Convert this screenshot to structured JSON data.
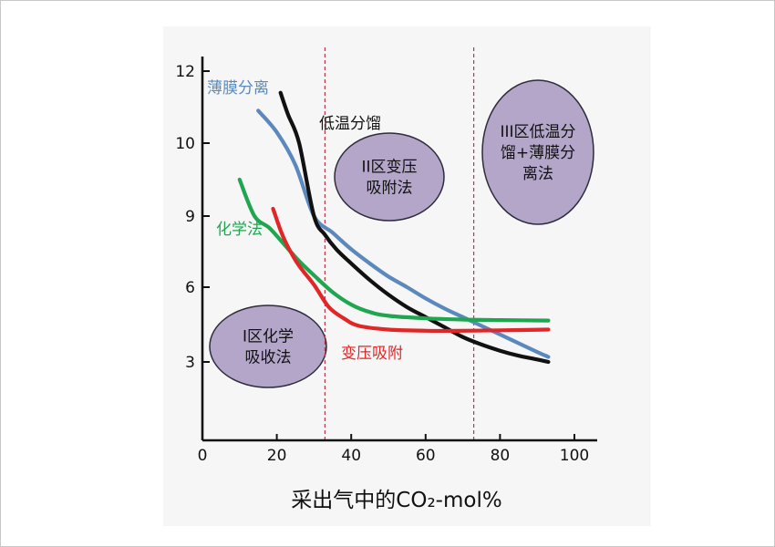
{
  "chart_data": {
    "type": "line",
    "xlabel": "采出气中的CO₂-mol%",
    "x_ticks": [
      "0",
      "20",
      "40",
      "60",
      "80",
      "100"
    ],
    "y_ticks": [
      "3",
      "6",
      "9",
      "10",
      "12"
    ],
    "xlim": [
      0,
      100
    ],
    "y_scale": "piecewise",
    "grid": false,
    "vlines": [
      30,
      70
    ],
    "series": [
      {
        "name": "薄膜分离",
        "color": "#5b89bd",
        "points": [
          [
            15,
            10.9
          ],
          [
            20,
            10.3
          ],
          [
            25,
            9.7
          ],
          [
            30,
            9.0
          ],
          [
            35,
            8.3
          ],
          [
            40,
            7.6
          ],
          [
            45,
            7.0
          ],
          [
            50,
            6.45
          ],
          [
            55,
            6.0
          ],
          [
            60,
            5.55
          ],
          [
            65,
            5.15
          ],
          [
            70,
            4.8
          ],
          [
            75,
            4.45
          ],
          [
            80,
            4.1
          ],
          [
            85,
            3.75
          ],
          [
            90,
            3.4
          ],
          [
            93,
            3.2
          ]
        ]
      },
      {
        "name": "低温分馏",
        "color": "#111111",
        "points": [
          [
            21,
            11.4
          ],
          [
            23,
            10.8
          ],
          [
            26,
            10.0
          ],
          [
            30,
            9.0
          ],
          [
            33,
            8.2
          ],
          [
            36,
            7.6
          ],
          [
            40,
            7.0
          ],
          [
            45,
            6.3
          ],
          [
            50,
            5.7
          ],
          [
            55,
            5.2
          ],
          [
            60,
            4.8
          ],
          [
            65,
            4.4
          ],
          [
            70,
            4.0
          ],
          [
            75,
            3.7
          ],
          [
            80,
            3.45
          ],
          [
            85,
            3.25
          ],
          [
            90,
            3.1
          ],
          [
            93,
            3.0
          ]
        ]
      },
      {
        "name": "化学法",
        "color": "#1fa650",
        "points": [
          [
            10,
            9.5
          ],
          [
            14,
            9.0
          ],
          [
            18,
            8.5
          ],
          [
            22,
            7.8
          ],
          [
            26,
            7.1
          ],
          [
            30,
            6.5
          ],
          [
            35,
            5.8
          ],
          [
            40,
            5.3
          ],
          [
            45,
            5.0
          ],
          [
            50,
            4.85
          ],
          [
            60,
            4.75
          ],
          [
            70,
            4.7
          ],
          [
            80,
            4.68
          ],
          [
            93,
            4.66
          ]
        ]
      },
      {
        "name": "变压吸附",
        "color": "#e02626",
        "points": [
          [
            19,
            9.1
          ],
          [
            21,
            8.4
          ],
          [
            23,
            7.7
          ],
          [
            26,
            6.9
          ],
          [
            30,
            6.1
          ],
          [
            34,
            5.2
          ],
          [
            38,
            4.75
          ],
          [
            42,
            4.45
          ],
          [
            50,
            4.3
          ],
          [
            60,
            4.25
          ],
          [
            70,
            4.25
          ],
          [
            80,
            4.27
          ],
          [
            93,
            4.3
          ]
        ]
      }
    ],
    "zones": [
      {
        "lines": [
          "I区化学",
          "吸收法"
        ]
      },
      {
        "lines": [
          "II区变压",
          "吸附法"
        ]
      },
      {
        "lines": [
          "III区低温分",
          "馏+薄膜分",
          "离法"
        ]
      }
    ]
  }
}
